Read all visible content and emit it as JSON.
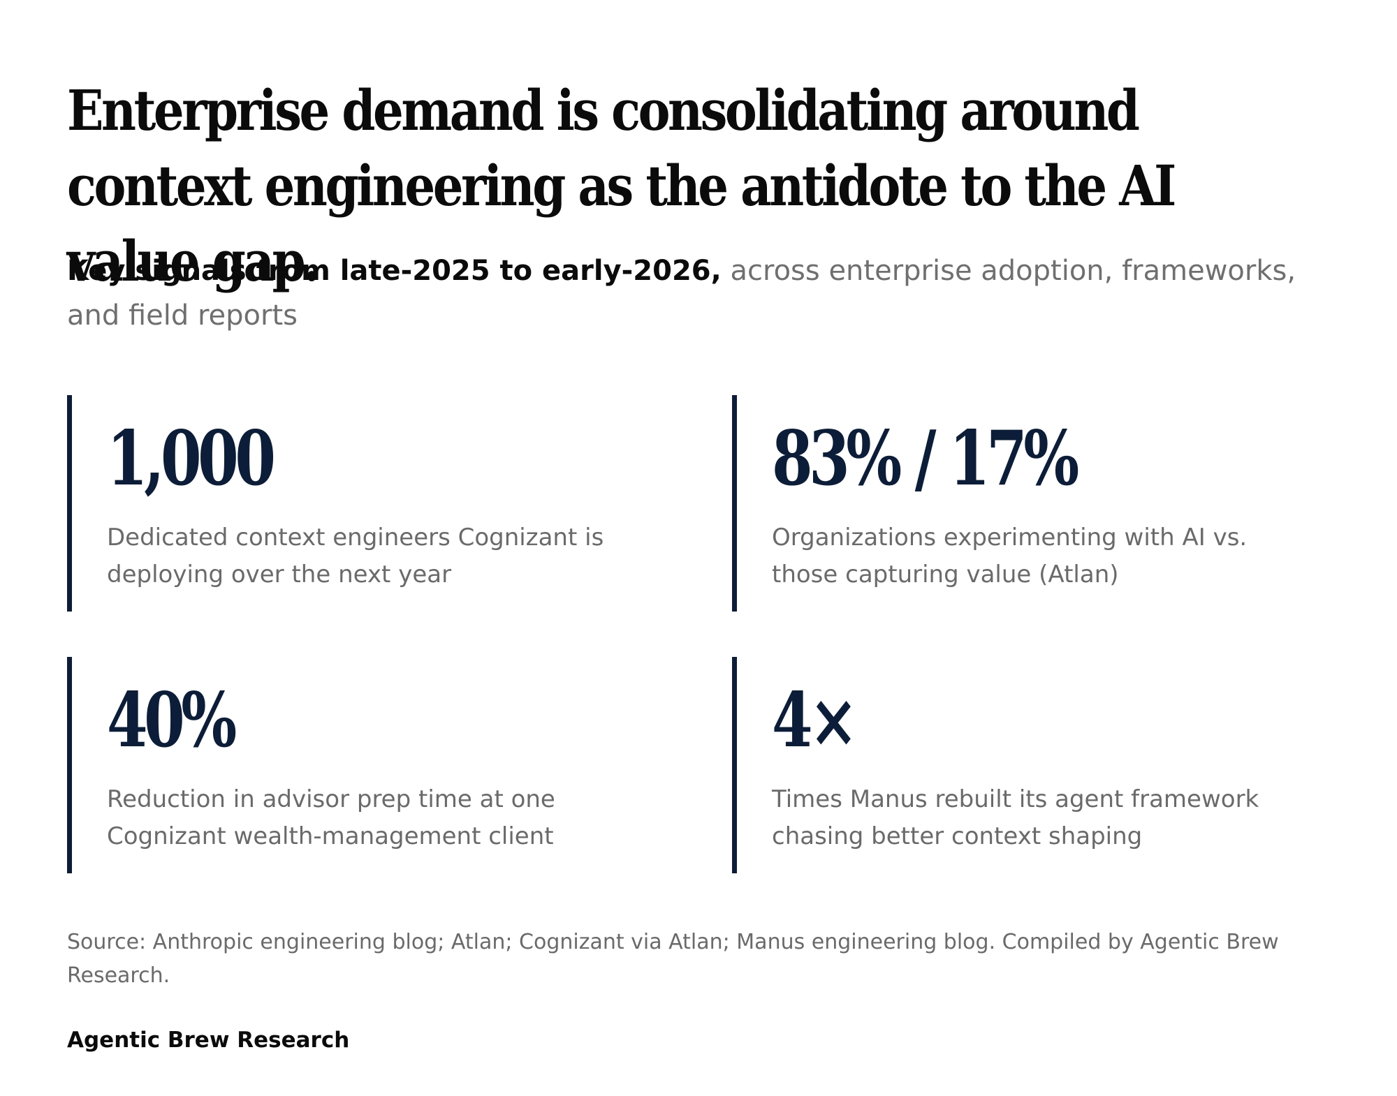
{
  "header": {
    "title": "Enterprise demand is consolidating around context engineering as the antidote to the AI value gap.",
    "subtitle_lead": "Key signals from late-2025 to early-2026,",
    "subtitle_rest": " across enterprise adoption, frameworks, and field reports"
  },
  "stats": [
    {
      "value": "1,000",
      "description": "Dedicated context engineers Cognizant is deploying over the next year"
    },
    {
      "value": "83% / 17%",
      "description": "Organizations experimenting with AI vs. those capturing value (Atlan)"
    },
    {
      "value": "40%",
      "description": "Reduction in advisor prep time at one Cognizant wealth-management client"
    },
    {
      "value": "4×",
      "description": "Times Manus rebuilt its agent framework chasing better context shaping"
    }
  ],
  "footer": {
    "source": "Source: Anthropic engineering blog; Atlan; Cognizant via Atlan; Manus engineering blog. Compiled by Agentic Brew Research.",
    "brand": "Agentic Brew Research"
  },
  "colors": {
    "accent": "#0b1d38",
    "heading": "#0b0b0b",
    "muted": "#6a6a6a"
  }
}
